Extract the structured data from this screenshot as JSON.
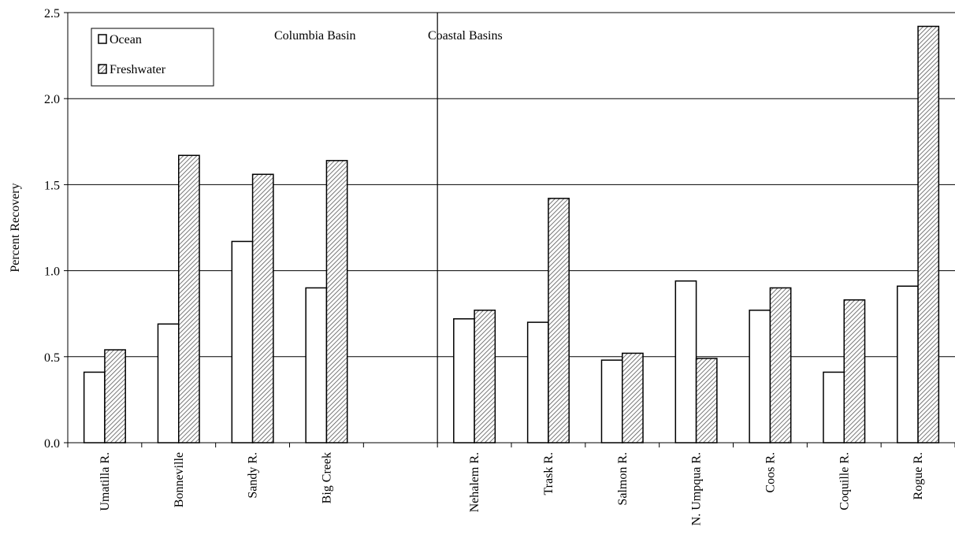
{
  "chart_data": {
    "type": "bar",
    "ylabel": "Percent Recovery",
    "xlabel": "",
    "ylim": [
      0,
      2.5
    ],
    "yticks": [
      "0.0",
      "0.5",
      "1.0",
      "1.5",
      "2.0",
      "2.5"
    ],
    "grid": "horizontal",
    "legend_placement": "top-left",
    "regions": [
      "Columbia Basin",
      "Coastal Basins"
    ],
    "categories": [
      "Umatilla R.",
      "Bonneville",
      "Sandy R.",
      "Big Creek",
      "",
      "Nehalem R.",
      "Trask R.",
      "Salmon R.",
      "N. Umpqua R.",
      "Coos  R.",
      "Coquille R.",
      "Rogue R."
    ],
    "series": [
      {
        "name": "Ocean",
        "color": "#ffffff",
        "pattern": "none",
        "values": [
          0.41,
          0.69,
          1.17,
          0.9,
          null,
          0.72,
          0.7,
          0.48,
          0.94,
          0.77,
          0.41,
          0.91
        ]
      },
      {
        "name": "Freshwater",
        "color": "#d0d0d0",
        "pattern": "diagonal-hatch",
        "values": [
          0.54,
          1.67,
          1.56,
          1.64,
          null,
          0.77,
          1.42,
          0.52,
          0.49,
          0.9,
          0.83,
          2.42
        ]
      }
    ]
  }
}
